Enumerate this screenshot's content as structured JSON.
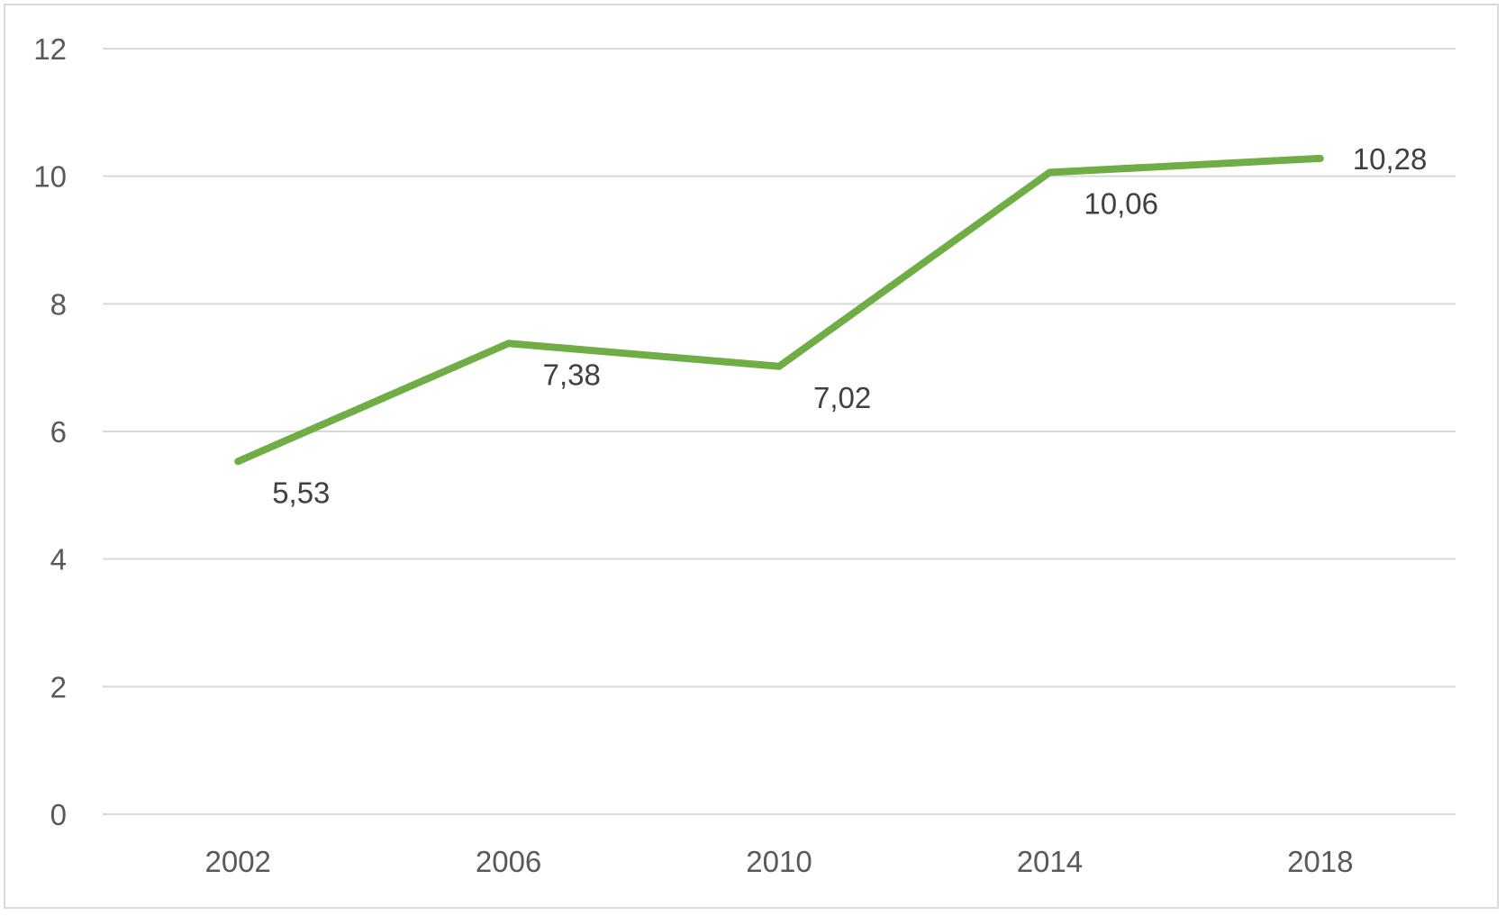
{
  "chart_data": {
    "type": "line",
    "title": "",
    "xlabel": "",
    "ylabel": "",
    "categories": [
      "2002",
      "2006",
      "2010",
      "2014",
      "2018"
    ],
    "series": [
      {
        "values": [
          5.53,
          7.38,
          7.02,
          10.06,
          10.28
        ],
        "data_labels": [
          "5,53",
          "7,38",
          "7,02",
          "10,06",
          "10,28"
        ],
        "color": "#70ad47"
      }
    ],
    "ylim": [
      0,
      12
    ],
    "yticks": [
      0,
      2,
      4,
      6,
      8,
      10,
      12
    ],
    "ytick_labels": [
      "0",
      "2",
      "4",
      "6",
      "8",
      "10",
      "12"
    ],
    "grid": true,
    "legend": "none"
  }
}
